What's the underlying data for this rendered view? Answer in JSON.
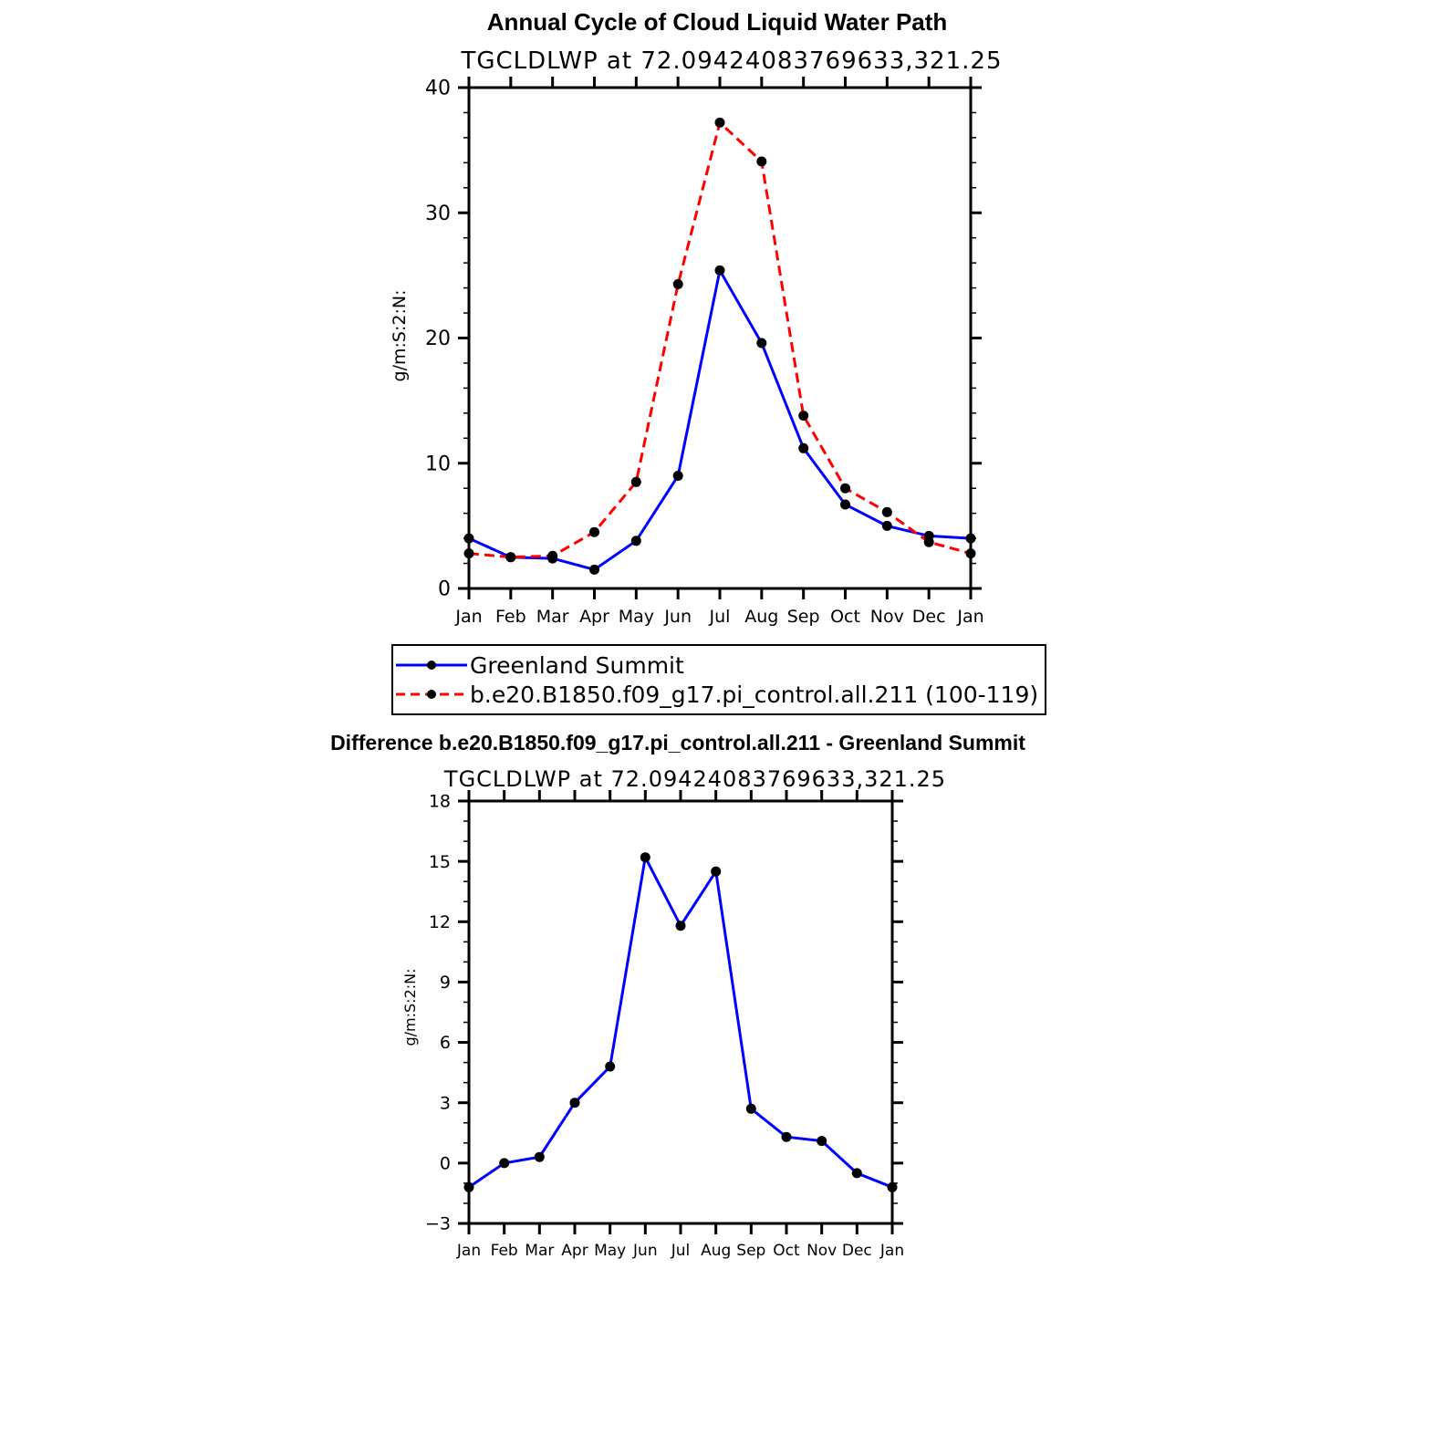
{
  "colors": {
    "model": "#ff0000",
    "observation": "#0000ff",
    "marker": "#000000",
    "axis": "#000000",
    "background": "#ffffff"
  },
  "chart_data": [
    {
      "type": "line",
      "title": "Annual Cycle of Cloud Liquid Water Path",
      "subtitle": "TGCLDLWP at 72.09424083769633,321.25",
      "ylabel": "g/m:S:2:N:",
      "ylim": [
        0,
        40
      ],
      "yticks": [
        "0",
        "10",
        "20",
        "30",
        "40"
      ],
      "categories": [
        "Jan",
        "Feb",
        "Mar",
        "Apr",
        "May",
        "Jun",
        "Jul",
        "Aug",
        "Sep",
        "Oct",
        "Nov",
        "Dec",
        "Jan"
      ],
      "grid": false,
      "legend_position": "bottom",
      "series": [
        {
          "name": "Greenland Summit",
          "style": "solid",
          "color": "#0000ff",
          "values": [
            4.0,
            2.5,
            2.4,
            1.5,
            3.8,
            9.0,
            25.4,
            19.6,
            11.2,
            6.7,
            5.0,
            4.2,
            4.0
          ]
        },
        {
          "name": "b.e20.B1850.f09_g17.pi_control.all.211 (100-119)",
          "style": "dashed",
          "color": "#ff0000",
          "values": [
            2.8,
            2.5,
            2.6,
            4.5,
            8.5,
            24.3,
            37.2,
            34.1,
            13.8,
            8.0,
            6.1,
            3.7,
            2.8
          ]
        }
      ]
    },
    {
      "type": "line",
      "title": "Difference b.e20.B1850.f09_g17.pi_control.all.211 - Greenland Summit",
      "subtitle": "TGCLDLWP at 72.09424083769633,321.25",
      "ylabel": "g/m:S:2:N:",
      "ylim": [
        -3,
        18
      ],
      "yticks": [
        "−3",
        "0",
        "3",
        "6",
        "9",
        "12",
        "15",
        "18"
      ],
      "categories": [
        "Jan",
        "Feb",
        "Mar",
        "Apr",
        "May",
        "Jun",
        "Jul",
        "Aug",
        "Sep",
        "Oct",
        "Nov",
        "Dec",
        "Jan"
      ],
      "grid": false,
      "series": [
        {
          "style": "solid",
          "color": "#0000ff",
          "values": [
            -1.2,
            0.0,
            0.3,
            3.0,
            4.8,
            15.2,
            11.8,
            14.5,
            2.7,
            1.3,
            1.1,
            -0.5,
            -1.2
          ]
        }
      ]
    }
  ]
}
